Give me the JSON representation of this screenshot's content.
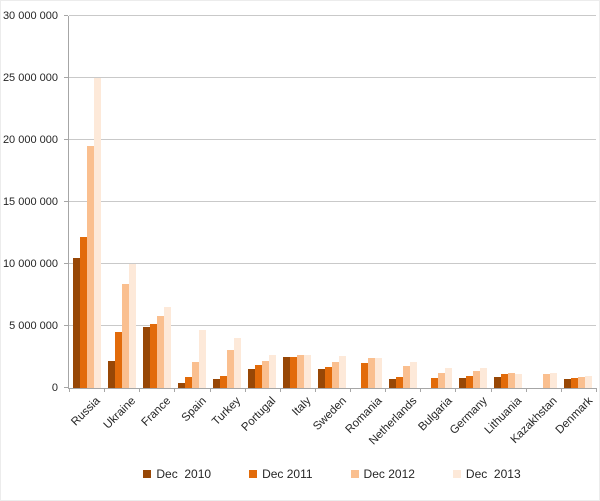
{
  "chart_data": {
    "type": "bar",
    "title": "",
    "categories": [
      "Russia",
      "Ukraine",
      "France",
      "Spain",
      "Turkey",
      "Portugal",
      "Italy",
      "Sweden",
      "Romania",
      "Netherlands",
      "Bulgaria",
      "Germany",
      "Lithuania",
      "Kazakhstan",
      "Denmark"
    ],
    "series": [
      {
        "name": "Dec  2010",
        "color": "#974706",
        "values": [
          10500000,
          2200000,
          4900000,
          400000,
          700000,
          1500000,
          2500000,
          1500000,
          null,
          700000,
          null,
          800000,
          900000,
          null,
          700000
        ]
      },
      {
        "name": "Dec 2011",
        "color": "#E26B0A",
        "values": [
          12200000,
          4500000,
          5200000,
          900000,
          1000000,
          1850000,
          2500000,
          1700000,
          2000000,
          900000,
          800000,
          1000000,
          1100000,
          null,
          800000
        ]
      },
      {
        "name": "Dec 2012",
        "color": "#FABF8F",
        "values": [
          19500000,
          8400000,
          5800000,
          2100000,
          3100000,
          2200000,
          2700000,
          2100000,
          2400000,
          1800000,
          1200000,
          1400000,
          1200000,
          1100000,
          850000
        ]
      },
      {
        "name": "Dec  2013",
        "color": "#FDE9D9",
        "values": [
          25000000,
          10000000,
          6500000,
          4700000,
          4000000,
          2700000,
          2700000,
          2600000,
          2400000,
          2100000,
          1600000,
          1600000,
          1150000,
          1200000,
          950000
        ]
      }
    ],
    "ylim": [
      0,
      30000000
    ],
    "ytick_step": 5000000,
    "yticks": [
      {
        "value": 0,
        "label": "0"
      },
      {
        "value": 5000000,
        "label": "5 000 000"
      },
      {
        "value": 10000000,
        "label": "10 000 000"
      },
      {
        "value": 15000000,
        "label": "15 000 000"
      },
      {
        "value": 20000000,
        "label": "20 000 000"
      },
      {
        "value": 25000000,
        "label": "25 000 000"
      },
      {
        "value": 30000000,
        "label": "30 000 000"
      }
    ],
    "grid": true,
    "legend_position": "bottom",
    "colors": {
      "gridline": "#C9C9C9",
      "axis": "#A6A6A6",
      "text": "#262626",
      "background": "#FFFFFF"
    }
  }
}
